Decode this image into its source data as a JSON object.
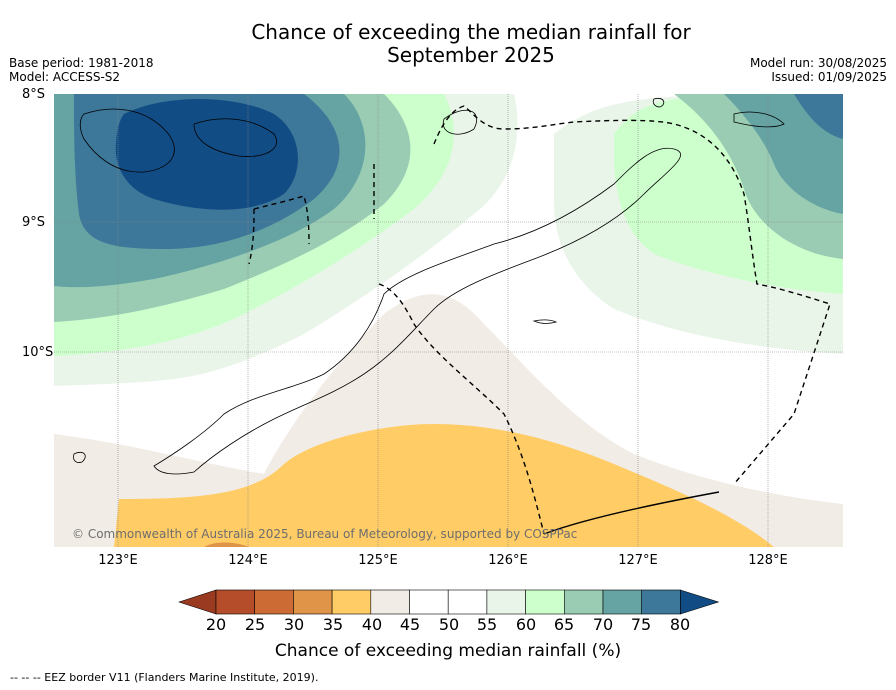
{
  "title_line1": "Chance of exceeding the median rainfall for",
  "title_line2": "September 2025",
  "meta": {
    "base_period": "Base period: 1981-2018",
    "model": "Model: ACCESS-S2",
    "model_run": "Model run: 30/08/2025",
    "issued": "Issued: 01/09/2025"
  },
  "lat_labels": [
    "8°S",
    "9°S",
    "10°S"
  ],
  "lon_labels": [
    "123°E",
    "124°E",
    "125°E",
    "126°E",
    "127°E",
    "128°E"
  ],
  "copyright": "© Commonwealth of Australia 2025, Bureau of Meteorology, supported by COSPPac",
  "colorbar": {
    "title": "Chance of exceeding median rainfall (%)",
    "ticks": [
      "20",
      "25",
      "30",
      "35",
      "40",
      "45",
      "50",
      "55",
      "60",
      "65",
      "70",
      "75",
      "80"
    ],
    "colors": [
      "#9a3a20",
      "#b54d2a",
      "#cc6b33",
      "#e09448",
      "#ffcc66",
      "#f1ece6",
      "#ffffff",
      "#ffffff",
      "#eaf5ea",
      "#ccffcc",
      "#99ccb3",
      "#66a3a3",
      "#3d7799",
      "#124c84"
    ]
  },
  "footer": "-- -- -- EEZ border V11 (Flanders Marine Institute, 2019).",
  "legend_colors": {
    "land_outline": "#000000",
    "eez_border": "#000000",
    "grid": "#888888"
  }
}
